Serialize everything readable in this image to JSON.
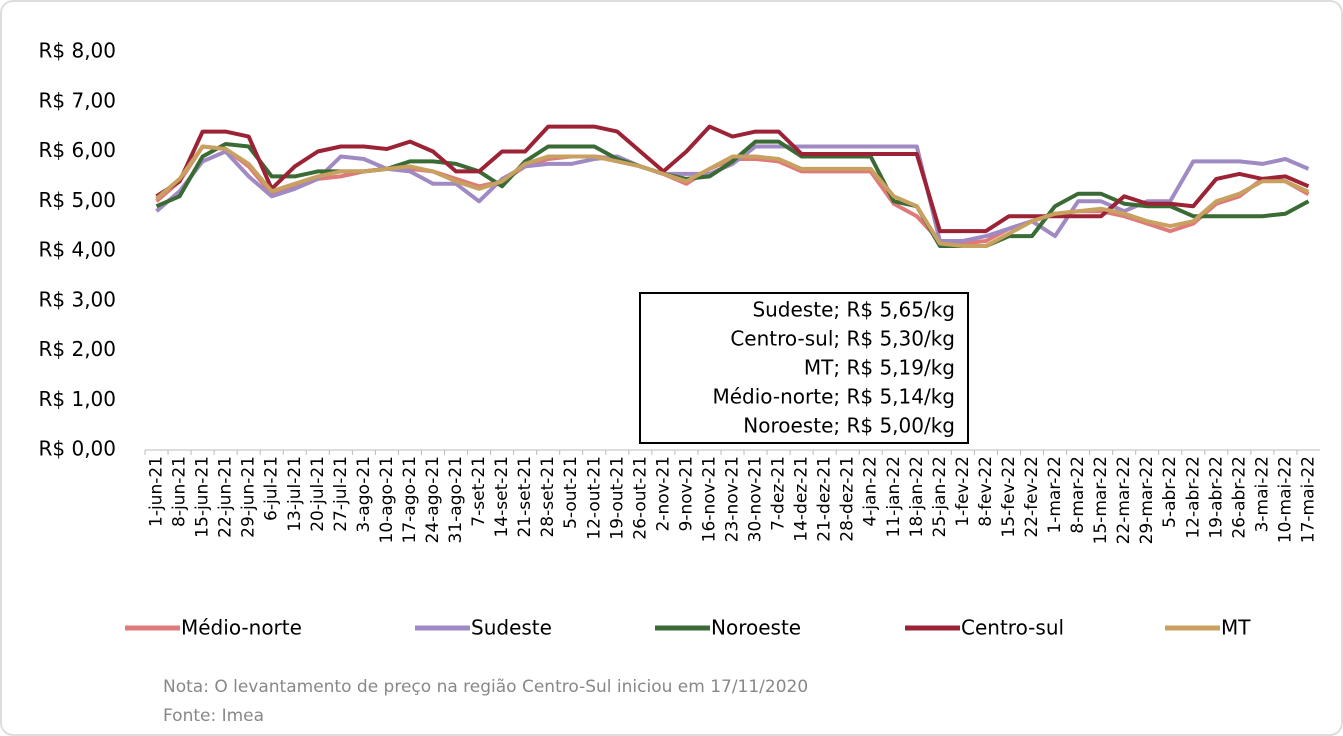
{
  "chart_data": {
    "type": "line",
    "categories": [
      "1-jun-21",
      "8-jun-21",
      "15-jun-21",
      "22-jun-21",
      "29-jun-21",
      "6-jul-21",
      "13-jul-21",
      "20-jul-21",
      "27-jul-21",
      "3-ago-21",
      "10-ago-21",
      "17-ago-21",
      "24-ago-21",
      "31-ago-21",
      "7-set-21",
      "14-set-21",
      "21-set-21",
      "28-set-21",
      "5-out-21",
      "12-out-21",
      "19-out-21",
      "26-out-21",
      "2-nov-21",
      "9-nov-21",
      "16-nov-21",
      "23-nov-21",
      "30-nov-21",
      "7-dez-21",
      "14-dez-21",
      "21-dez-21",
      "28-dez-21",
      "4-jan-22",
      "11-jan-22",
      "18-jan-22",
      "25-jan-22",
      "1-fev-22",
      "8-fev-22",
      "15-fev-22",
      "22-fev-22",
      "1-mar-22",
      "8-mar-22",
      "15-mar-22",
      "22-mar-22",
      "29-mar-22",
      "5-abr-22",
      "12-abr-22",
      "19-abr-22",
      "26-abr-22",
      "3-mai-22",
      "10-mai-22",
      "17-mai-22"
    ],
    "series": [
      {
        "name": "Médio-norte",
        "color": "#e07a7a",
        "values": [
          5.0,
          5.4,
          6.1,
          6.05,
          5.7,
          5.15,
          5.3,
          5.45,
          5.5,
          5.6,
          5.65,
          5.65,
          5.6,
          5.45,
          5.3,
          5.4,
          5.7,
          5.85,
          5.9,
          5.9,
          5.85,
          5.7,
          5.55,
          5.35,
          5.65,
          5.85,
          5.85,
          5.8,
          5.6,
          5.6,
          5.6,
          5.6,
          4.95,
          4.7,
          4.2,
          4.15,
          4.2,
          4.45,
          4.6,
          4.75,
          4.8,
          4.8,
          4.7,
          4.55,
          4.4,
          4.55,
          4.95,
          5.1,
          5.45,
          5.4,
          5.14
        ]
      },
      {
        "name": "Sudeste",
        "color": "#a08ac4",
        "values": [
          4.8,
          5.2,
          5.8,
          6.0,
          5.5,
          5.1,
          5.25,
          5.45,
          5.9,
          5.85,
          5.65,
          5.6,
          5.35,
          5.35,
          5.0,
          5.45,
          5.7,
          5.75,
          5.75,
          5.85,
          5.9,
          5.7,
          5.55,
          5.55,
          5.55,
          5.75,
          6.1,
          6.1,
          6.1,
          6.1,
          6.1,
          6.1,
          6.1,
          6.1,
          4.2,
          4.2,
          4.3,
          4.45,
          4.6,
          4.3,
          5.0,
          5.0,
          4.8,
          5.0,
          5.0,
          5.8,
          5.8,
          5.8,
          5.75,
          5.85,
          5.65
        ]
      },
      {
        "name": "Noroeste",
        "color": "#3a6b35",
        "values": [
          4.9,
          5.1,
          5.9,
          6.15,
          6.1,
          5.5,
          5.5,
          5.6,
          5.6,
          5.6,
          5.65,
          5.8,
          5.8,
          5.75,
          5.6,
          5.3,
          5.8,
          6.1,
          6.1,
          6.1,
          5.85,
          5.7,
          5.55,
          5.45,
          5.5,
          5.8,
          6.2,
          6.2,
          5.9,
          5.9,
          5.9,
          5.9,
          5.0,
          4.9,
          4.1,
          4.1,
          4.1,
          4.3,
          4.3,
          4.9,
          5.15,
          5.15,
          4.95,
          4.9,
          4.9,
          4.7,
          4.7,
          4.7,
          4.7,
          4.75,
          5.0
        ]
      },
      {
        "name": "Centro-sul",
        "color": "#9b2335",
        "values": [
          5.1,
          5.4,
          6.4,
          6.4,
          6.3,
          5.25,
          5.7,
          6.0,
          6.1,
          6.1,
          6.05,
          6.2,
          6.0,
          5.6,
          5.6,
          6.0,
          6.0,
          6.5,
          6.5,
          6.5,
          6.4,
          6.0,
          5.6,
          6.0,
          6.5,
          6.3,
          6.4,
          6.4,
          5.95,
          5.95,
          5.95,
          5.95,
          5.95,
          5.95,
          4.4,
          4.4,
          4.4,
          4.7,
          4.7,
          4.7,
          4.7,
          4.7,
          5.1,
          4.95,
          4.95,
          4.9,
          5.45,
          5.55,
          5.45,
          5.5,
          5.3
        ]
      },
      {
        "name": "MT",
        "color": "#c8a060",
        "values": [
          5.05,
          5.45,
          6.1,
          6.05,
          5.75,
          5.2,
          5.35,
          5.5,
          5.6,
          5.6,
          5.65,
          5.7,
          5.6,
          5.4,
          5.25,
          5.4,
          5.75,
          5.9,
          5.9,
          5.9,
          5.8,
          5.7,
          5.55,
          5.4,
          5.65,
          5.9,
          5.9,
          5.85,
          5.65,
          5.65,
          5.65,
          5.65,
          5.1,
          4.9,
          4.15,
          4.1,
          4.1,
          4.35,
          4.6,
          4.75,
          4.8,
          4.85,
          4.75,
          4.6,
          4.5,
          4.6,
          5.0,
          5.15,
          5.4,
          5.4,
          5.19
        ]
      }
    ],
    "ylim": [
      0,
      8
    ],
    "yticks": [
      {
        "value": 0,
        "label": "R$ 0,00"
      },
      {
        "value": 1,
        "label": "R$ 1,00"
      },
      {
        "value": 2,
        "label": "R$ 2,00"
      },
      {
        "value": 3,
        "label": "R$ 3,00"
      },
      {
        "value": 4,
        "label": "R$ 4,00"
      },
      {
        "value": 5,
        "label": "R$ 5,00"
      },
      {
        "value": 6,
        "label": "R$ 6,00"
      },
      {
        "value": 7,
        "label": "R$ 7,00"
      },
      {
        "value": 8,
        "label": "R$ 8,00"
      }
    ],
    "annotations": [
      "Sudeste; R$ 5,65/kg",
      "Centro-sul; R$ 5,30/kg",
      "MT; R$ 5,19/kg",
      "Médio-norte; R$ 5,14/kg",
      "Noroeste; R$ 5,00/kg"
    ],
    "note": "Nota: O levantamento de preço na região Centro-Sul iniciou em 17/11/2020",
    "source": "Fonte: Imea"
  }
}
